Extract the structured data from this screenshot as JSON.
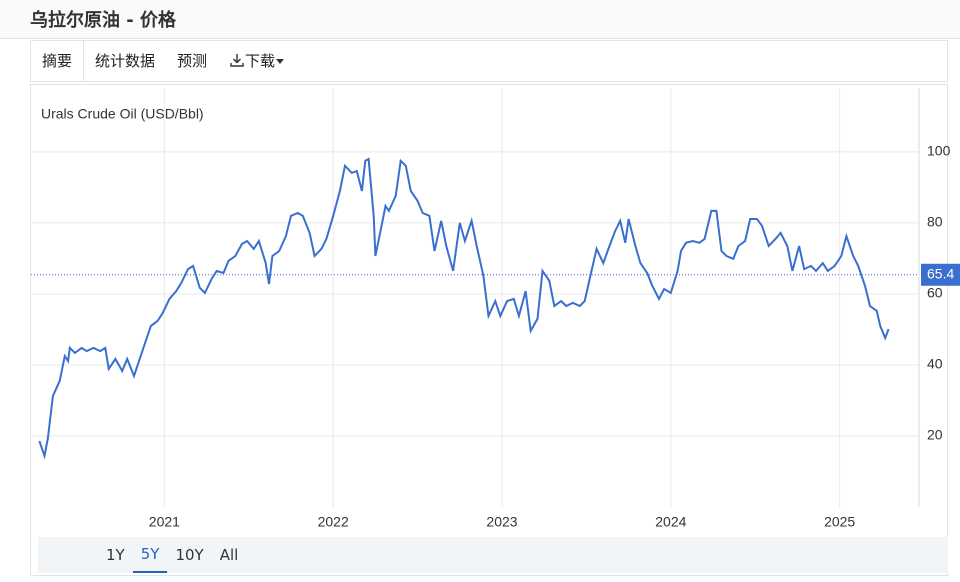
{
  "header": {
    "title": "乌拉尔原油 - 价格"
  },
  "tabs": [
    "摘要",
    "统计数据",
    "预测",
    "下载"
  ],
  "active_tab": 0,
  "ranges": [
    "1Y",
    "5Y",
    "10Y",
    "All"
  ],
  "active_range": 1,
  "chart_data": {
    "type": "line",
    "title": "Urals Crude Oil (USD/Bbl)",
    "x": [
      2020.26,
      2020.29,
      2020.31,
      2020.34,
      2020.38,
      2020.41,
      2020.43,
      2020.44,
      2020.47,
      2020.51,
      2020.54,
      2020.58,
      2020.62,
      2020.65,
      2020.67,
      2020.71,
      2020.75,
      2020.78,
      2020.82,
      2020.85,
      2020.89,
      2020.92,
      2020.96,
      2020.99,
      2021.03,
      2021.07,
      2021.1,
      2021.14,
      2021.17,
      2021.21,
      2021.24,
      2021.28,
      2021.31,
      2021.35,
      2021.38,
      2021.42,
      2021.46,
      2021.49,
      2021.53,
      2021.56,
      2021.6,
      2021.62,
      2021.64,
      2021.68,
      2021.72,
      2021.75,
      2021.79,
      2021.82,
      2021.86,
      2021.89,
      2021.93,
      2021.96,
      2022.0,
      2022.04,
      2022.07,
      2022.11,
      2022.14,
      2022.17,
      2022.19,
      2022.21,
      2022.24,
      2022.25,
      2022.28,
      2022.31,
      2022.33,
      2022.37,
      2022.4,
      2022.43,
      2022.46,
      2022.5,
      2022.53,
      2022.57,
      2022.6,
      2022.64,
      2022.67,
      2022.71,
      2022.75,
      2022.78,
      2022.82,
      2022.85,
      2022.89,
      2022.92,
      2022.96,
      2022.99,
      2023.03,
      2023.07,
      2023.1,
      2023.14,
      2023.17,
      2023.21,
      2023.24,
      2023.28,
      2023.31,
      2023.35,
      2023.38,
      2023.42,
      2023.46,
      2023.49,
      2023.53,
      2023.56,
      2023.6,
      2023.63,
      2023.67,
      2023.7,
      2023.73,
      2023.75,
      2023.79,
      2023.82,
      2023.86,
      2023.89,
      2023.93,
      2023.96,
      2024.0,
      2024.04,
      2024.06,
      2024.09,
      2024.13,
      2024.17,
      2024.2,
      2024.24,
      2024.27,
      2024.3,
      2024.33,
      2024.37,
      2024.4,
      2024.44,
      2024.47,
      2024.51,
      2024.54,
      2024.58,
      2024.62,
      2024.65,
      2024.69,
      2024.72,
      2024.76,
      2024.79,
      2024.83,
      2024.86,
      2024.9,
      2024.93,
      2024.97,
      2025.01,
      2025.04,
      2025.08,
      2025.11,
      2025.15,
      2025.18,
      2025.22,
      2025.24,
      2025.27,
      2025.29
    ],
    "series": [
      {
        "name": "Urals Crude Oil",
        "color": "#3a6fd0",
        "values": [
          18.6,
          14.4,
          19.4,
          31.3,
          35.5,
          42.5,
          41.1,
          44.8,
          43.4,
          44.8,
          43.9,
          44.8,
          43.9,
          44.8,
          38.9,
          41.7,
          38.3,
          41.7,
          36.9,
          41.1,
          46.8,
          51,
          52.4,
          54.6,
          58.6,
          60.8,
          63.1,
          67,
          67.9,
          61.7,
          60.3,
          64.2,
          66.5,
          65.9,
          69.3,
          70.7,
          74.1,
          74.9,
          72.7,
          74.9,
          68.7,
          62.8,
          70.7,
          72.1,
          76.3,
          82,
          82.8,
          82,
          77.2,
          70.7,
          72.7,
          75.5,
          82,
          89,
          96.1,
          94.1,
          94.6,
          89,
          97.5,
          98,
          82,
          70.7,
          77.7,
          84.8,
          83.4,
          87.6,
          97.5,
          96.1,
          89,
          86.2,
          82.8,
          82,
          72.1,
          80.6,
          73.5,
          66.5,
          80,
          74.9,
          80.6,
          73.5,
          65.1,
          53.8,
          58,
          53.8,
          58,
          58.6,
          53.8,
          60.8,
          49.6,
          53,
          66.5,
          63.7,
          56.6,
          58,
          56.6,
          57.5,
          56.6,
          58,
          66.5,
          72.7,
          68.7,
          72.7,
          77.7,
          80.6,
          74.4,
          81.1,
          73.5,
          68.7,
          65.9,
          62.3,
          58.6,
          61.4,
          60.3,
          66.5,
          72.1,
          74.4,
          74.9,
          74.4,
          75.5,
          83.4,
          83.4,
          72.1,
          70.7,
          69.9,
          73.5,
          74.9,
          81.1,
          81.1,
          79.2,
          73.5,
          75.5,
          77.2,
          73.5,
          66.5,
          73.5,
          67,
          67.9,
          66.5,
          68.7,
          66.5,
          67.9,
          70.7,
          76.3,
          70.7,
          67.9,
          62.3,
          56.6,
          55.2,
          51,
          47.6,
          50.1
        ]
      }
    ],
    "reference_line": {
      "value": 65.4,
      "color": "#3a6fd0"
    },
    "xlim": [
      2020.21,
      2025.47
    ],
    "xticks": [
      2021,
      2022,
      2023,
      2024,
      2025
    ],
    "ylim": [
      0,
      118
    ],
    "yticks": [
      20,
      40,
      60,
      80,
      100
    ],
    "grid": true
  }
}
